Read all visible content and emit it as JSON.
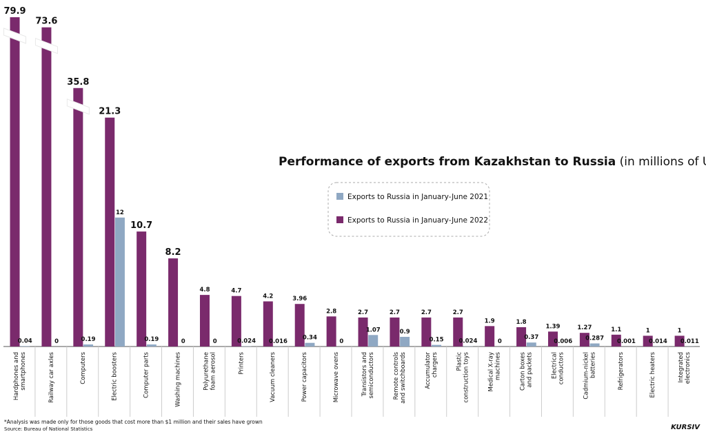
{
  "chart_data": {
    "type": "bar",
    "title": "Performance of exports from Kazakhstan to Russia",
    "subtitle": "(in millions of US dollars)",
    "categories": [
      "Hardphones and smartphones",
      "Railway car axles",
      "Computers",
      "Electric boosters",
      "Computer parts",
      "Washing machines",
      "Polyurethane foam aerosol",
      "Printers",
      "Vacuum cleaners",
      "Power capacitors",
      "Microwave ovens",
      "Transistors and semiconductors",
      "Remote controls and switchboards",
      "Accumulator chargers",
      "Plastic construction toys",
      "Medical X-ray machines",
      "Carton boxes and packets",
      "Electrical conductors",
      "Cadmium-nickel batteries",
      "Refrigerators",
      "Electric heaters",
      "Integrated electronics"
    ],
    "series": [
      {
        "name": "Exports to Russia in January-June 2021",
        "color": "#8fa8c3",
        "values": [
          0.04,
          0,
          0.19,
          12,
          0.19,
          0,
          0,
          0.024,
          0.016,
          0.34,
          0,
          1.07,
          0.9,
          0.15,
          0.024,
          0,
          0.37,
          0.006,
          0.287,
          0.001,
          0.014,
          0.011
        ]
      },
      {
        "name": "Exports to Russia in January-June 2022",
        "color": "#7a2a6c",
        "values": [
          79.9,
          73.6,
          35.8,
          21.3,
          10.7,
          8.2,
          4.8,
          4.7,
          4.2,
          3.96,
          2.8,
          2.7,
          2.7,
          2.7,
          2.7,
          1.9,
          1.8,
          1.39,
          1.27,
          1.1,
          1,
          1
        ]
      }
    ],
    "footnote": "*Analysis was made only for those goods that cost more than $1 million and their sales have grown",
    "source": "Source: Bureau of National Statistics",
    "brand": "KURSIV"
  }
}
